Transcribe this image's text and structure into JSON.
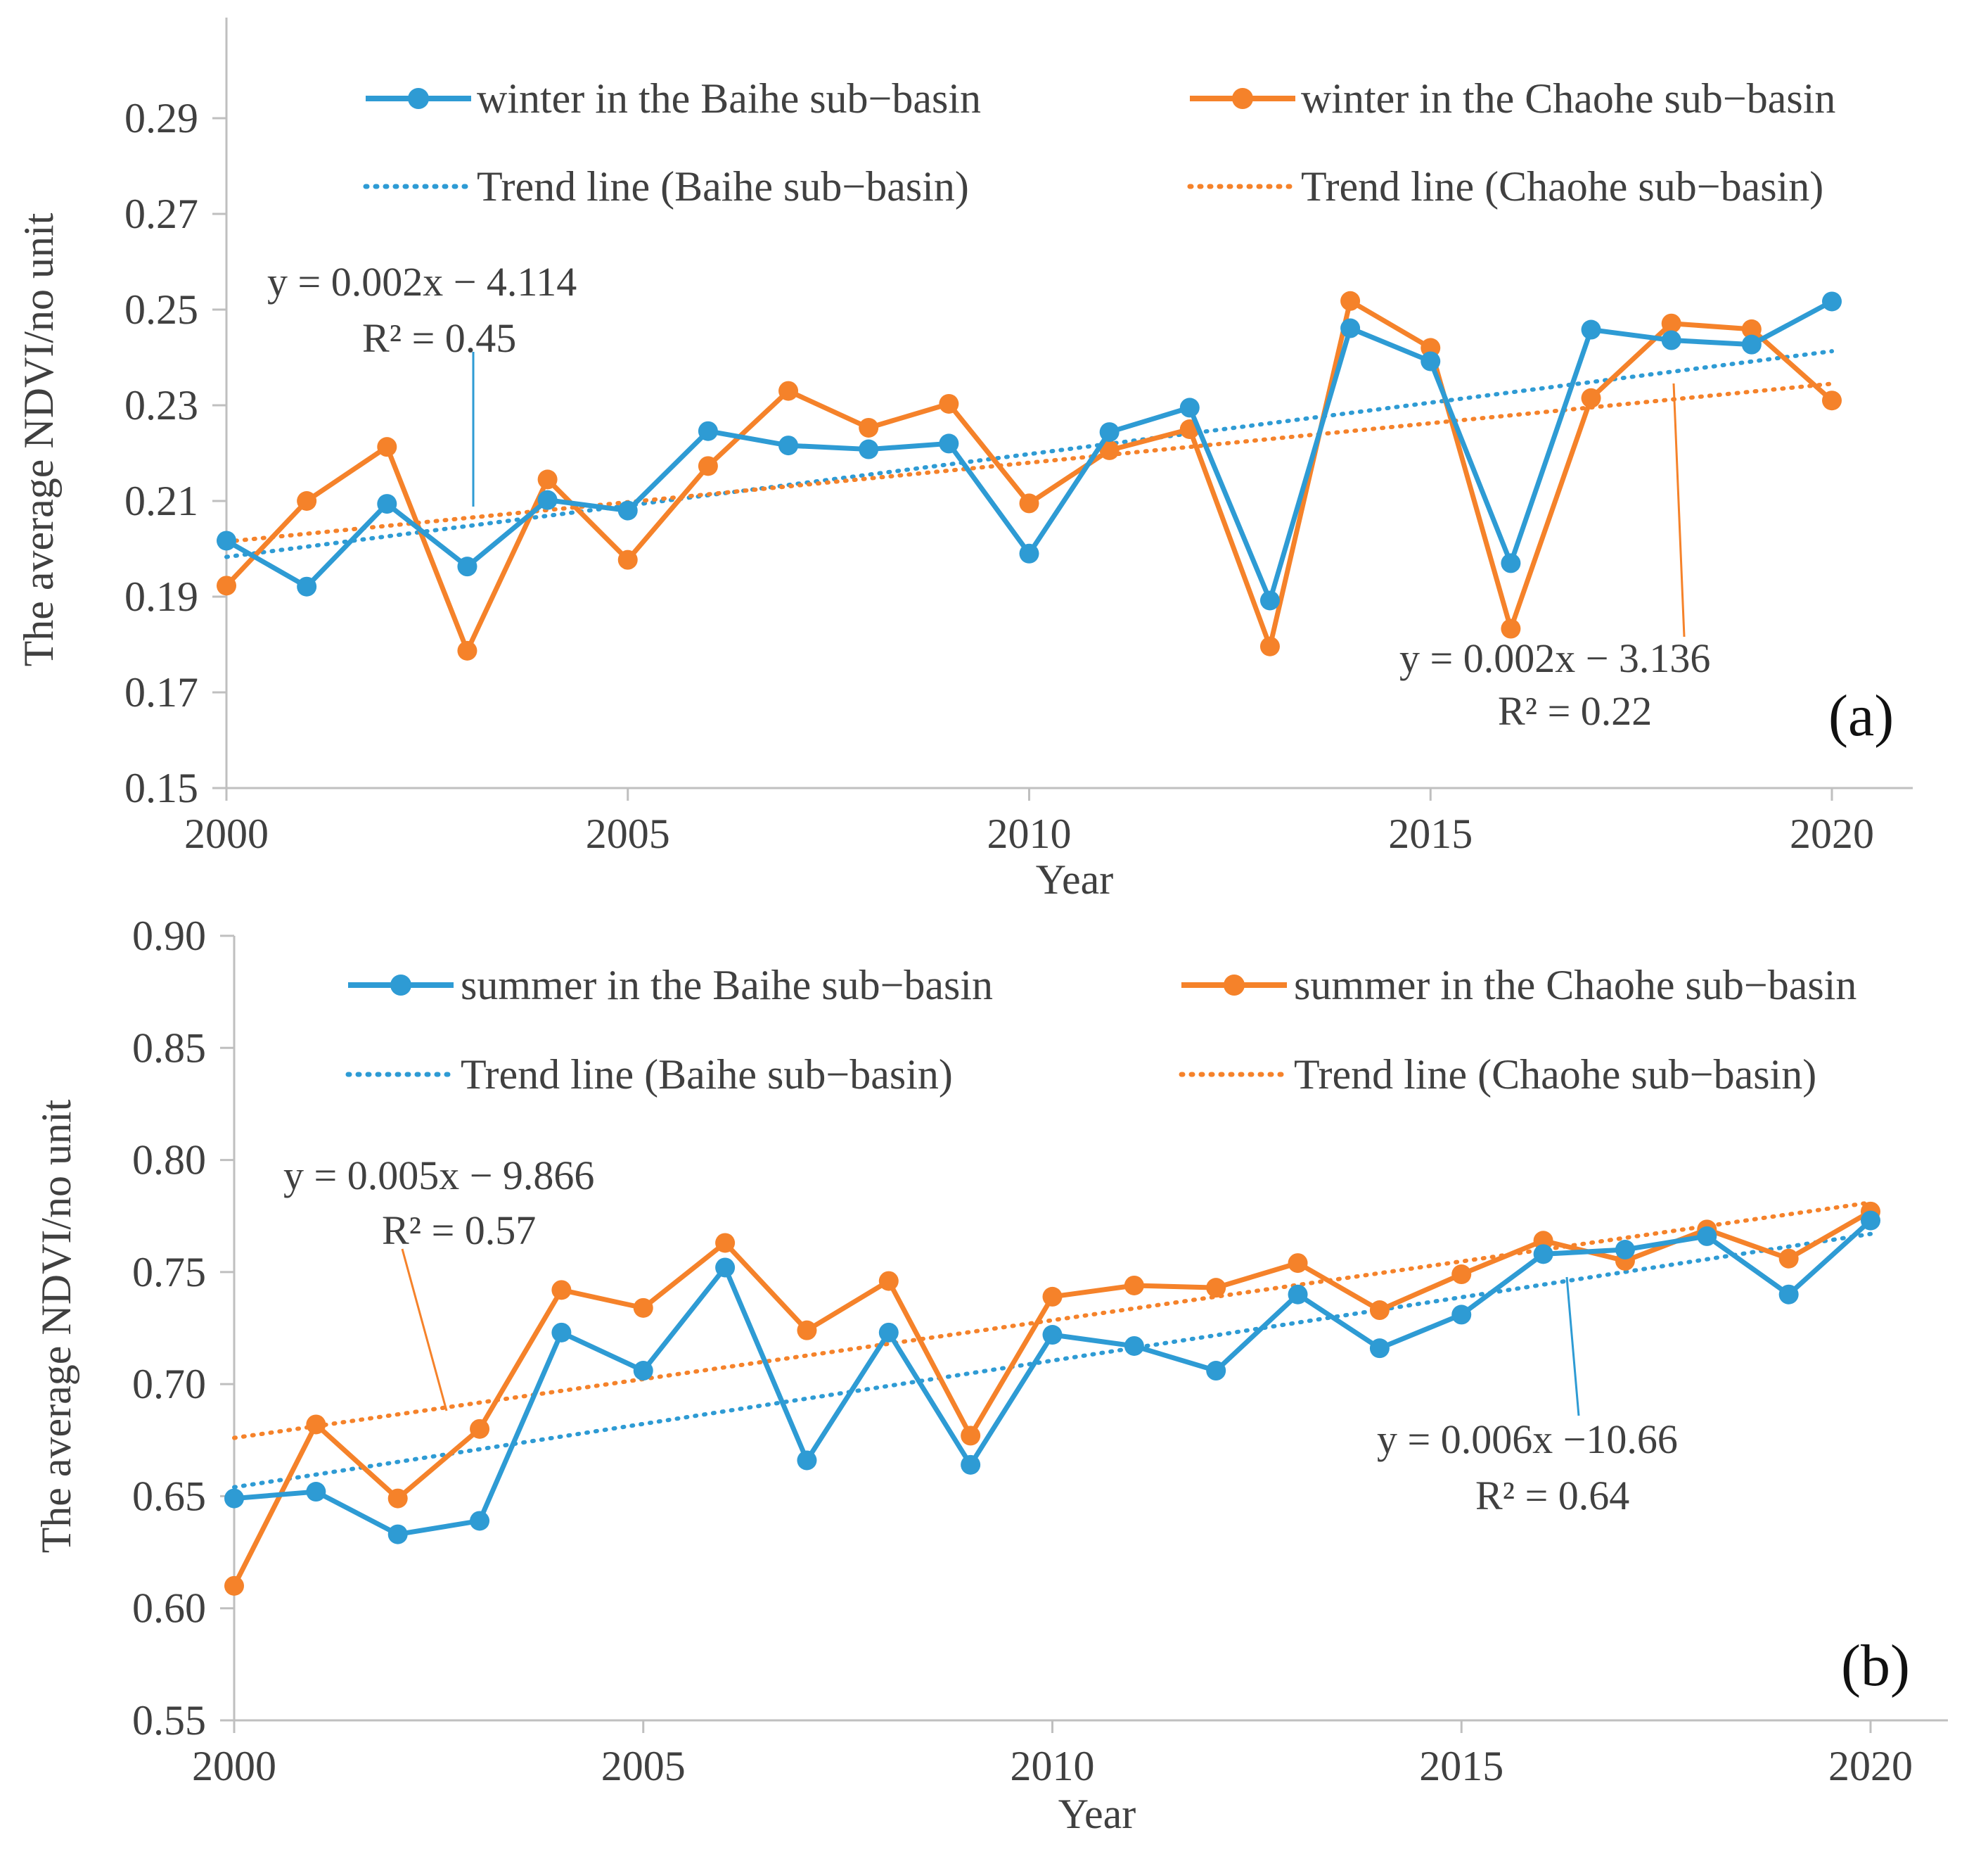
{
  "chart_data": [
    {
      "type": "line",
      "panel_label": "(a)",
      "xlabel": "Year",
      "ylabel": "The average NDVI/no unit",
      "xlim": [
        2000,
        2021
      ],
      "ylim": [
        0.15,
        0.3
      ],
      "x_ticks": [
        "2000",
        "2005",
        "2010",
        "2015",
        "2020"
      ],
      "y_ticks": [
        "0.15",
        "0.17",
        "0.19",
        "0.21",
        "0.23",
        "0.25",
        "0.27",
        "0.29"
      ],
      "x": [
        2000,
        2001,
        2002,
        2003,
        2004,
        2005,
        2006,
        2007,
        2008,
        2009,
        2010,
        2011,
        2012,
        2013,
        2014,
        2015,
        2016,
        2017,
        2018,
        2019,
        2020
      ],
      "series": [
        {
          "name": "winter in the Baihe sub−basin",
          "color": "#2e9bd4",
          "values": [
            0.2017,
            0.1921,
            0.2094,
            0.1963,
            0.2102,
            0.208,
            0.2246,
            0.2216,
            0.2208,
            0.222,
            0.199,
            0.2244,
            0.2295,
            0.1892,
            0.2461,
            0.2392,
            0.197,
            0.2458,
            0.2436,
            0.2427,
            0.2517
          ]
        },
        {
          "name": "winter in the Chaohe sub−basin",
          "color": "#f5822a",
          "values": [
            0.1923,
            0.21,
            0.2213,
            0.1787,
            0.2145,
            0.1977,
            0.2173,
            0.233,
            0.2253,
            0.2303,
            0.2095,
            0.2206,
            0.225,
            0.1796,
            0.2518,
            0.242,
            0.1833,
            0.2315,
            0.2471,
            0.2459,
            0.231
          ]
        }
      ],
      "trend_lines": [
        {
          "name": "Trend line (Baihe sub−basin)",
          "color": "#2e9bd4",
          "start": [
            2000,
            0.1983
          ],
          "end": [
            2020,
            0.2413
          ]
        },
        {
          "name": "Trend line (Chaohe sub−basin)",
          "color": "#f5822a",
          "start": [
            2000,
            0.2015
          ],
          "end": [
            2020,
            0.2345
          ]
        }
      ],
      "annotations": [
        {
          "equation": "y = 0.002x − 4.114",
          "r2": "R² = 0.45",
          "color": "#2e9bd4"
        },
        {
          "equation": "y = 0.002x − 3.136",
          "r2": "R² = 0.22",
          "color": "#f5822a"
        }
      ],
      "legend": "top",
      "grid": false
    },
    {
      "type": "line",
      "panel_label": "(b)",
      "xlabel": "Year",
      "ylabel": "The average NDVI/no unit",
      "xlim": [
        2000,
        2021
      ],
      "ylim": [
        0.55,
        0.9
      ],
      "x_ticks": [
        "2000",
        "2005",
        "2010",
        "2015",
        "2020"
      ],
      "y_ticks": [
        "0.55",
        "0.60",
        "0.65",
        "0.70",
        "0.75",
        "0.80",
        "0.85",
        "0.90"
      ],
      "x": [
        2000,
        2001,
        2002,
        2003,
        2004,
        2005,
        2006,
        2007,
        2008,
        2009,
        2010,
        2011,
        2012,
        2013,
        2014,
        2015,
        2016,
        2017,
        2018,
        2019,
        2020
      ],
      "series": [
        {
          "name": "summer in the Baihe sub−basin",
          "color": "#2e9bd4",
          "values": [
            0.649,
            0.652,
            0.633,
            0.639,
            0.723,
            0.706,
            0.752,
            0.666,
            0.723,
            0.664,
            0.722,
            0.717,
            0.706,
            0.74,
            0.716,
            0.731,
            0.758,
            0.76,
            0.766,
            0.74,
            0.773
          ]
        },
        {
          "name": "summer in the Chaohe sub−basin",
          "color": "#f5822a",
          "values": [
            0.61,
            0.682,
            0.649,
            0.68,
            0.742,
            0.734,
            0.763,
            0.724,
            0.746,
            0.677,
            0.739,
            0.744,
            0.743,
            0.754,
            0.733,
            0.749,
            0.764,
            0.755,
            0.769,
            0.756,
            0.777
          ]
        }
      ],
      "trend_lines": [
        {
          "name": "Trend line (Baihe sub−basin)",
          "color": "#2e9bd4",
          "start": [
            2000,
            0.654
          ],
          "end": [
            2020,
            0.767
          ]
        },
        {
          "name": "Trend line (Chaohe sub−basin)",
          "color": "#f5822a",
          "start": [
            2000,
            0.676
          ],
          "end": [
            2020,
            0.781
          ]
        }
      ],
      "annotations": [
        {
          "equation": "y = 0.005x − 9.866",
          "r2": "R² = 0.57",
          "color": "#f5822a"
        },
        {
          "equation": "y = 0.006x −10.66",
          "r2": "R² = 0.64",
          "color": "#2e9bd4"
        }
      ],
      "legend": "top",
      "grid": false
    }
  ]
}
